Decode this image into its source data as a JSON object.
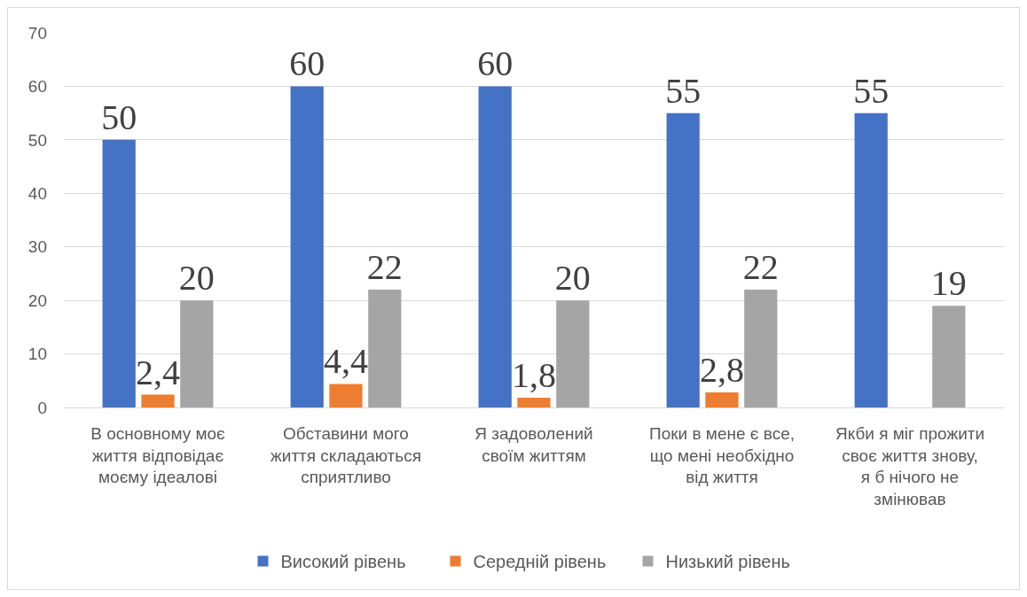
{
  "chart_data": {
    "type": "bar",
    "categories": [
      "В основному моє життя відповідає моєму ідеалові",
      "Обставини мого життя складаються сприятливо",
      "Я задоволений своїм життям",
      "Поки в мене є все, що мені необхідно від життя",
      "Якби я міг прожити своє життя знову, я б нічого не змінював"
    ],
    "series": [
      {
        "name": "Високий рівень",
        "color": "#4472c4",
        "values": [
          50,
          60,
          60,
          55,
          55
        ],
        "value_labels": [
          "50",
          "60",
          "60",
          "55",
          "55"
        ]
      },
      {
        "name": "Середній рівень",
        "color": "#ed7d31",
        "values": [
          2.4,
          4.4,
          1.8,
          2.8,
          null
        ],
        "value_labels": [
          "2,4",
          "4,4",
          "1,8",
          "2,8",
          null
        ]
      },
      {
        "name": "Низький рівень",
        "color": "#a5a5a5",
        "values": [
          20,
          22,
          20,
          22,
          19
        ],
        "value_labels": [
          "20",
          "22",
          "20",
          "22",
          "19"
        ]
      }
    ],
    "ylim": [
      0,
      70
    ],
    "yticks": [
      0,
      10,
      20,
      30,
      40,
      50,
      60,
      70
    ],
    "grid": "y",
    "legend": "bottom"
  }
}
